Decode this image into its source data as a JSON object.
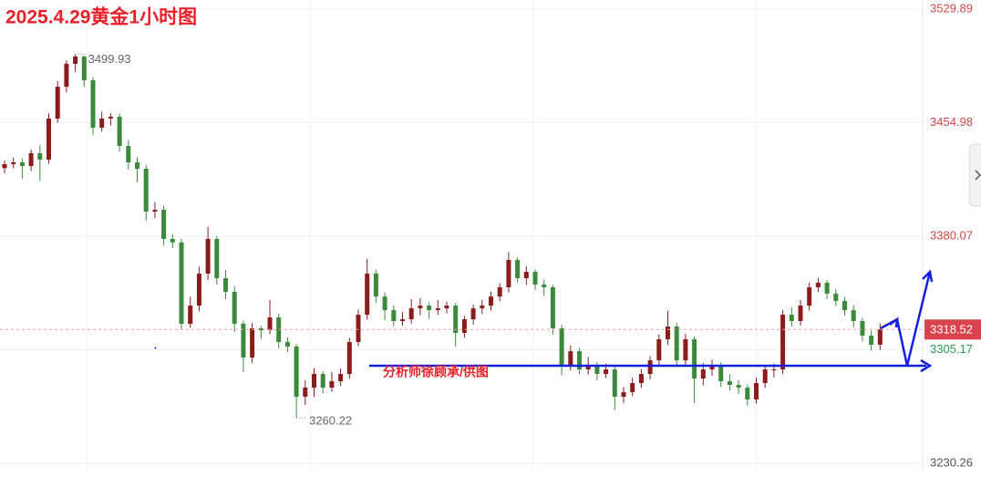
{
  "chart_data": {
    "type": "candlestick",
    "title": "2025.4.29黄金1小时图",
    "annotation": "分析师徐顾承/供图",
    "up_color": "#8c1c1c",
    "down_color": "#3b8a3b",
    "ylim": [
      3230.26,
      3529.89
    ],
    "yticks": [
      3230.26,
      3305.17,
      3380.07,
      3454.98,
      3529.89
    ],
    "grid": true,
    "open": [
      3425.0,
      3427.6,
      3428.8,
      3426.4,
      3434.8,
      3430.6,
      3457.7,
      3478.7,
      3493.8,
      3498.6,
      3482.9,
      3451.7,
      3457.7,
      3458.9,
      3439.6,
      3428.8,
      3424.6,
      3396.3,
      3397.5,
      3378.3,
      3376.0,
      3322.3,
      3334.3,
      3355.4,
      3378.3,
      3352.4,
      3343.4,
      3322.3,
      3300.0,
      3319.3,
      3318.1,
      3326.5,
      3310.3,
      3307.3,
      3274.2,
      3280.2,
      3289.2,
      3280.2,
      3284.4,
      3289.2,
      3310.3,
      3328.3,
      3355.4,
      3340.3,
      3331.3,
      3324.1,
      3325.3,
      3332.5,
      3334.3,
      3331.3,
      3332.5,
      3334.3,
      3316.3,
      3325.3,
      3332.5,
      3334.3,
      3340.3,
      3346.4,
      3364.4,
      3352.4,
      3356.6,
      3348.2,
      3346.4,
      3319.3,
      3295.2,
      3304.2,
      3292.2,
      3295.2,
      3289.2,
      3292.2,
      3274.2,
      3277.2,
      3283.2,
      3289.2,
      3298.2,
      3312.1,
      3320.5,
      3298.2,
      3312.1,
      3286.2,
      3292.2,
      3295.2,
      3284.4,
      3282.0,
      3280.2,
      3272.4,
      3283.2,
      3292.2,
      3292.2,
      3328.3,
      3324.1,
      3334.3,
      3346.4,
      3349.4,
      3342.2,
      3337.4,
      3331.3,
      3324.1,
      3314.5,
      3308.5
    ],
    "high": [
      3430.2,
      3432.0,
      3431.5,
      3437.4,
      3440.2,
      3461.0,
      3482.5,
      3496.1,
      3499.93,
      3499.2,
      3485.0,
      3462.3,
      3461.4,
      3461.0,
      3443.5,
      3432.0,
      3427.1,
      3402.6,
      3400.1,
      3381.4,
      3378.5,
      3340.1,
      3360.0,
      3386.3,
      3380.2,
      3357.9,
      3347.0,
      3324.5,
      3322.7,
      3321.0,
      3338.0,
      3329.1,
      3313.5,
      3309.0,
      3284.9,
      3293.1,
      3291.0,
      3290.6,
      3293.0,
      3313.1,
      3331.7,
      3365.2,
      3358.1,
      3343.0,
      3334.5,
      3330.1,
      3338.7,
      3339.2,
      3336.5,
      3338.0,
      3337.0,
      3336.0,
      3327.4,
      3335.0,
      3338.2,
      3343.6,
      3349.0,
      3369.5,
      3366.1,
      3360.4,
      3358.3,
      3351.5,
      3348.0,
      3321.5,
      3308.0,
      3306.4,
      3300.5,
      3297.1,
      3296.0,
      3294.0,
      3280.6,
      3286.8,
      3292.5,
      3301.0,
      3315.3,
      3331.0,
      3322.8,
      3315.6,
      3314.0,
      3296.5,
      3298.8,
      3297.0,
      3289.0,
      3285.1,
      3282.5,
      3287.0,
      3295.4,
      3296.0,
      3331.5,
      3333.0,
      3338.1,
      3349.5,
      3352.6,
      3351.0,
      3345.3,
      3340.0,
      3334.6,
      3326.2,
      3317.9,
      3322.6
    ],
    "low": [
      3421.5,
      3424.9,
      3418.0,
      3423.1,
      3416.8,
      3428.0,
      3454.9,
      3475.0,
      3488.4,
      3478.5,
      3447.2,
      3449.0,
      3453.1,
      3435.8,
      3424.1,
      3415.7,
      3390.2,
      3392.0,
      3374.0,
      3372.2,
      3318.7,
      3319.6,
      3330.5,
      3351.0,
      3348.0,
      3338.6,
      3316.8,
      3290.4,
      3296.5,
      3312.2,
      3315.4,
      3306.0,
      3303.8,
      3260.22,
      3268.8,
      3274.0,
      3276.3,
      3277.5,
      3281.2,
      3286.0,
      3307.5,
      3325.0,
      3336.2,
      3324.8,
      3320.6,
      3321.0,
      3322.4,
      3327.9,
      3325.6,
      3328.2,
      3329.1,
      3307.1,
      3313.0,
      3321.8,
      3328.7,
      3331.0,
      3337.2,
      3343.0,
      3349.5,
      3348.0,
      3344.6,
      3340.7,
      3315.2,
      3288.3,
      3291.5,
      3289.0,
      3288.7,
      3285.0,
      3286.4,
      3265.3,
      3270.0,
      3274.5,
      3280.1,
      3285.6,
      3295.0,
      3308.4,
      3294.6,
      3295.3,
      3270.1,
      3281.7,
      3288.0,
      3280.5,
      3278.3,
      3276.0,
      3268.2,
      3269.6,
      3280.0,
      3286.9,
      3289.0,
      3320.4,
      3321.2,
      3331.0,
      3343.2,
      3338.5,
      3333.9,
      3327.7,
      3320.0,
      3310.8,
      3304.6,
      3305.0
    ],
    "close": [
      3427.6,
      3428.8,
      3426.4,
      3434.8,
      3430.6,
      3457.7,
      3478.7,
      3493.8,
      3498.6,
      3482.9,
      3451.7,
      3457.7,
      3458.9,
      3439.6,
      3428.8,
      3424.6,
      3396.3,
      3397.5,
      3378.3,
      3376.0,
      3322.3,
      3334.3,
      3355.4,
      3378.3,
      3352.4,
      3343.4,
      3322.3,
      3300.0,
      3319.3,
      3318.1,
      3326.5,
      3310.3,
      3307.3,
      3274.2,
      3280.2,
      3289.2,
      3280.2,
      3284.4,
      3289.2,
      3310.3,
      3328.3,
      3355.4,
      3340.3,
      3331.3,
      3324.1,
      3325.3,
      3332.5,
      3334.3,
      3331.3,
      3332.5,
      3334.3,
      3316.3,
      3325.3,
      3332.5,
      3334.3,
      3340.3,
      3346.4,
      3364.4,
      3352.4,
      3356.6,
      3348.2,
      3346.4,
      3319.3,
      3295.2,
      3304.2,
      3292.2,
      3295.2,
      3289.2,
      3292.2,
      3274.2,
      3277.2,
      3283.2,
      3289.2,
      3298.2,
      3312.1,
      3320.5,
      3298.2,
      3312.1,
      3286.2,
      3292.2,
      3295.2,
      3284.4,
      3282.0,
      3280.2,
      3272.4,
      3283.2,
      3292.2,
      3292.2,
      3328.3,
      3324.1,
      3334.3,
      3346.4,
      3349.4,
      3342.2,
      3337.4,
      3331.3,
      3324.1,
      3314.5,
      3308.5,
      3318.52
    ]
  }
}
